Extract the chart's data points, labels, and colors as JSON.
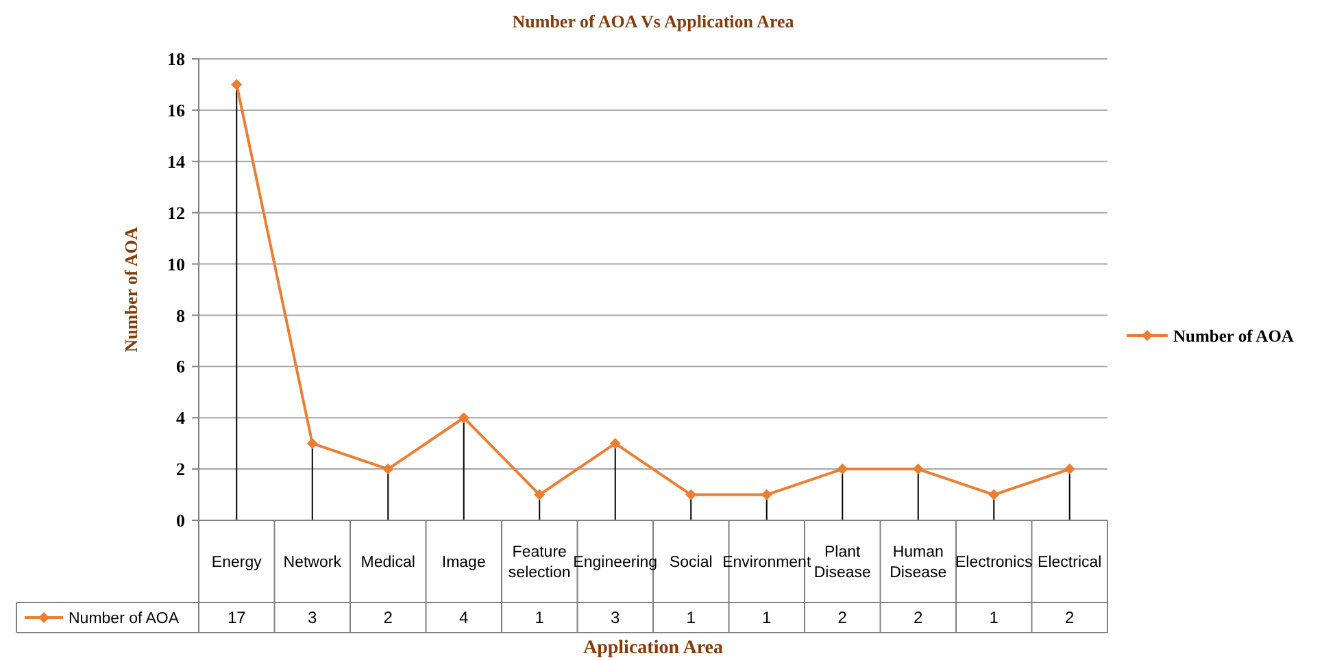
{
  "chart_data": {
    "type": "line",
    "title": "Number of AOA Vs Application Area",
    "xlabel": "Application Area",
    "ylabel": "Number of AOA",
    "categories": [
      "Energy",
      "Network",
      "Medical",
      "Image",
      "Feature selection",
      "Engineering",
      "Social",
      "Environment",
      "Plant Disease",
      "Human Disease",
      "Electronics",
      "Electrical"
    ],
    "series": [
      {
        "name": "Number of AOA",
        "color": "#ed7d31",
        "values": [
          17,
          3,
          2,
          4,
          1,
          3,
          1,
          1,
          2,
          2,
          1,
          2
        ],
        "errors": [
          [
            0,
            17
          ],
          [
            0,
            3
          ],
          [
            0,
            2
          ],
          [
            0,
            4
          ],
          [
            0,
            1
          ],
          [
            0,
            3
          ],
          [
            0,
            1
          ],
          [
            0,
            1
          ],
          [
            0,
            2
          ],
          [
            0,
            2
          ],
          [
            0,
            1
          ],
          [
            0,
            2
          ]
        ]
      }
    ],
    "ylim": [
      0,
      18
    ],
    "yticks": [
      0,
      2,
      4,
      6,
      8,
      10,
      12,
      14,
      16,
      18
    ],
    "grid": "y",
    "legend": "right",
    "marker": "diamond",
    "data_labels": true
  }
}
